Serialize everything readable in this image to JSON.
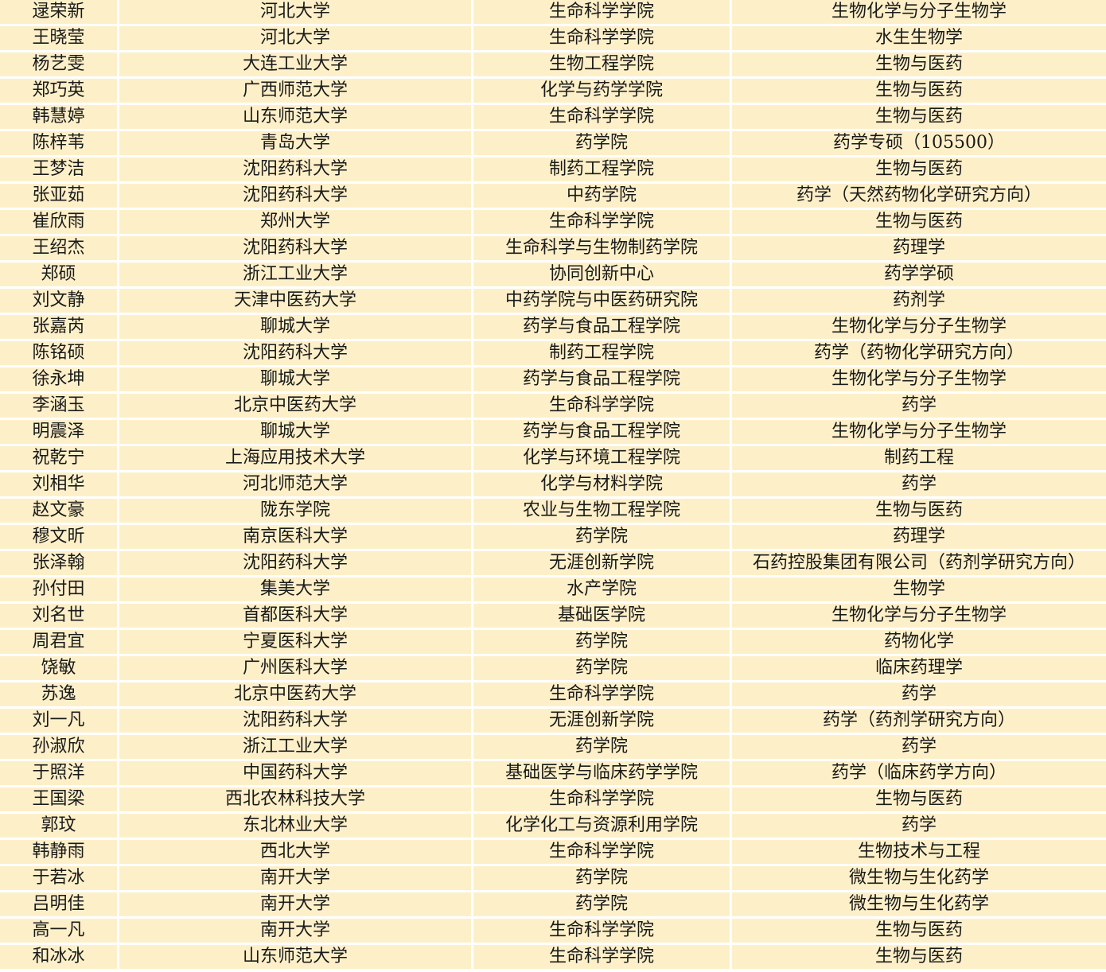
{
  "table": {
    "rows": [
      [
        "逯荣新",
        "河北大学",
        "生命科学学院",
        "生物化学与分子生物学"
      ],
      [
        "王晓莹",
        "河北大学",
        "生命科学学院",
        "水生生物学"
      ],
      [
        "杨艺雯",
        "大连工业大学",
        "生物工程学院",
        "生物与医药"
      ],
      [
        "郑巧英",
        "广西师范大学",
        "化学与药学学院",
        "生物与医药"
      ],
      [
        "韩慧婷",
        "山东师范大学",
        "生命科学学院",
        "生物与医药"
      ],
      [
        "陈梓苇",
        "青岛大学",
        "药学院",
        "药学专硕（105500）"
      ],
      [
        "王梦洁",
        "沈阳药科大学",
        "制药工程学院",
        "生物与医药"
      ],
      [
        "张亚茹",
        "沈阳药科大学",
        "中药学院",
        "药学（天然药物化学研究方向）"
      ],
      [
        "崔欣雨",
        "郑州大学",
        "生命科学学院",
        "生物与医药"
      ],
      [
        "王绍杰",
        "沈阳药科大学",
        "生命科学与生物制药学院",
        "药理学"
      ],
      [
        "郑硕",
        "浙江工业大学",
        "协同创新中心",
        "药学学硕"
      ],
      [
        "刘文静",
        "天津中医药大学",
        "中药学院与中医药研究院",
        "药剂学"
      ],
      [
        "张嘉芮",
        "聊城大学",
        "药学与食品工程学院",
        "生物化学与分子生物学"
      ],
      [
        "陈铭硕",
        "沈阳药科大学",
        "制药工程学院",
        "药学（药物化学研究方向）"
      ],
      [
        "徐永坤",
        "聊城大学",
        "药学与食品工程学院",
        "生物化学与分子生物学"
      ],
      [
        "李涵玉",
        "北京中医药大学",
        "生命科学学院",
        "药学"
      ],
      [
        "明震泽",
        "聊城大学",
        "药学与食品工程学院",
        "生物化学与分子生物学"
      ],
      [
        "祝乾宁",
        "上海应用技术大学",
        "化学与环境工程学院",
        "制药工程"
      ],
      [
        "刘相华",
        "河北师范大学",
        "化学与材料学院",
        "药学"
      ],
      [
        "赵文豪",
        "陇东学院",
        "农业与生物工程学院",
        "生物与医药"
      ],
      [
        "穆文昕",
        "南京医科大学",
        "药学院",
        "药理学"
      ],
      [
        "张泽翰",
        "沈阳药科大学",
        "无涯创新学院",
        "石药控股集团有限公司（药剂学研究方向）"
      ],
      [
        "孙付田",
        "集美大学",
        "水产学院",
        "生物学"
      ],
      [
        "刘名世",
        "首都医科大学",
        "基础医学院",
        "生物化学与分子生物学"
      ],
      [
        "周君宜",
        "宁夏医科大学",
        "药学院",
        "药物化学"
      ],
      [
        "饶敏",
        "广州医科大学",
        "药学院",
        "临床药理学"
      ],
      [
        "苏逸",
        "北京中医药大学",
        "生命科学学院",
        "药学"
      ],
      [
        "刘一凡",
        "沈阳药科大学",
        "无涯创新学院",
        "药学（药剂学研究方向）"
      ],
      [
        "孙淑欣",
        "浙江工业大学",
        "药学院",
        "药学"
      ],
      [
        "于照洋",
        "中国药科大学",
        "基础医学与临床药学学院",
        "药学（临床药学方向）"
      ],
      [
        "王国梁",
        "西北农林科技大学",
        "生命科学学院",
        "生物与医药"
      ],
      [
        "郭玟",
        "东北林业大学",
        "化学化工与资源利用学院",
        "药学"
      ],
      [
        "韩静雨",
        "西北大学",
        "生命科学学院",
        "生物技术与工程"
      ],
      [
        "于若冰",
        "南开大学",
        "药学院",
        "微生物与生化药学"
      ],
      [
        "吕明佳",
        "南开大学",
        "药学院",
        "微生物与生化药学"
      ],
      [
        "高一凡",
        "南开大学",
        "生命科学学院",
        "生物与医药"
      ],
      [
        "和冰冰",
        "山东师范大学",
        "生命科学学院",
        "生物与医药"
      ]
    ]
  }
}
